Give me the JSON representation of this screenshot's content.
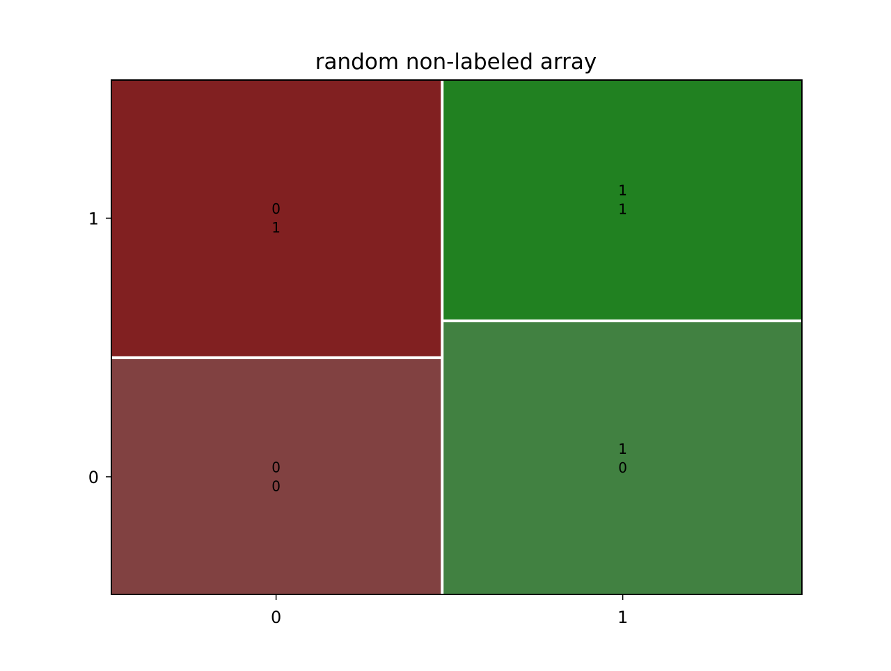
{
  "chart_data": {
    "type": "mosaic",
    "title": "random non-labeled array",
    "xlabel": "",
    "ylabel": "",
    "grid": false,
    "x_categories": [
      "0",
      "1"
    ],
    "y_categories": [
      "0",
      "1"
    ],
    "x_proportions": [
      0.479,
      0.521
    ],
    "tiles": [
      {
        "x": "0",
        "y": "0",
        "proportion": 0.46,
        "label": [
          "0",
          "0"
        ],
        "color": "#814141"
      },
      {
        "x": "0",
        "y": "1",
        "proportion": 0.54,
        "label": [
          "0",
          "1"
        ],
        "color": "#812021"
      },
      {
        "x": "1",
        "y": "0",
        "proportion": 0.532,
        "label": [
          "1",
          "0"
        ],
        "color": "#418141"
      },
      {
        "x": "1",
        "y": "1",
        "proportion": 0.468,
        "label": [
          "1",
          "1"
        ],
        "color": "#218121"
      }
    ]
  }
}
